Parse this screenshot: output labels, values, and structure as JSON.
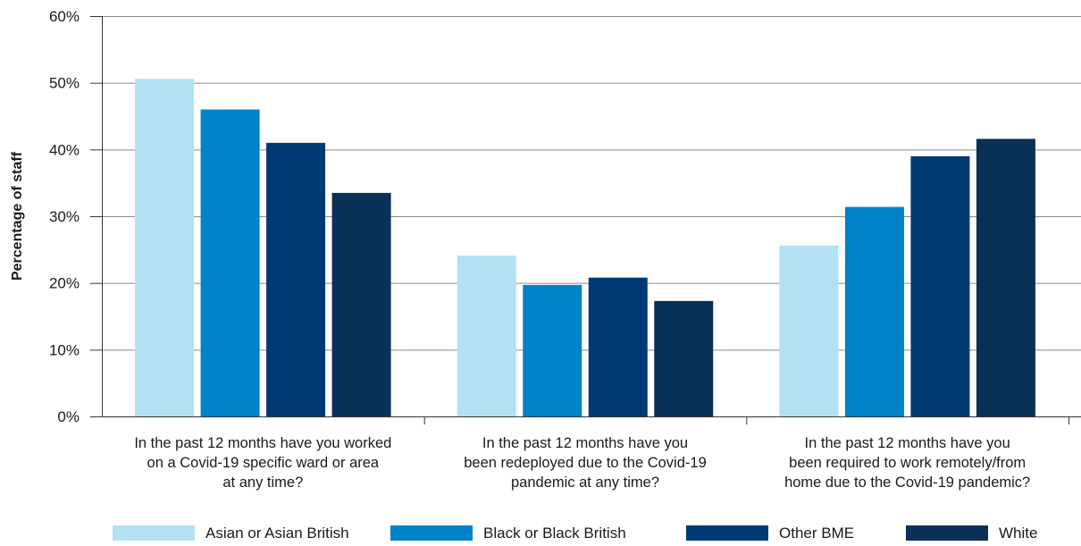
{
  "chart_data": {
    "type": "bar",
    "title": "",
    "xlabel": "",
    "ylabel": "Percentage of staff",
    "ylim": [
      0,
      60
    ],
    "yticks": [
      "0%",
      "10%",
      "20%",
      "30%",
      "40%",
      "50%",
      "60%"
    ],
    "grid": true,
    "legend_position": "bottom",
    "categories": [
      [
        "In the past 12 months have you worked",
        "on a Covid-19 specific ward or area",
        "at any time?"
      ],
      [
        "In the past 12 months have you",
        "been redeployed due to the Covid-19",
        "pandemic at any time?"
      ],
      [
        "In the past 12 months have you",
        "been required to work remotely/from",
        "home due to the Covid-19 pandemic?"
      ]
    ],
    "series": [
      {
        "name": "Asian or Asian British",
        "color": "#b3e0f2",
        "values": [
          50.6,
          24.1,
          25.6
        ]
      },
      {
        "name": "Black or Black British",
        "color": "#0082ca",
        "values": [
          46.0,
          19.7,
          31.4
        ]
      },
      {
        "name": "Other BME",
        "color": "#003a75",
        "values": [
          41.0,
          20.8,
          39.0
        ]
      },
      {
        "name": "White",
        "color": "#093056",
        "values": [
          33.5,
          17.3,
          41.6
        ]
      }
    ]
  }
}
